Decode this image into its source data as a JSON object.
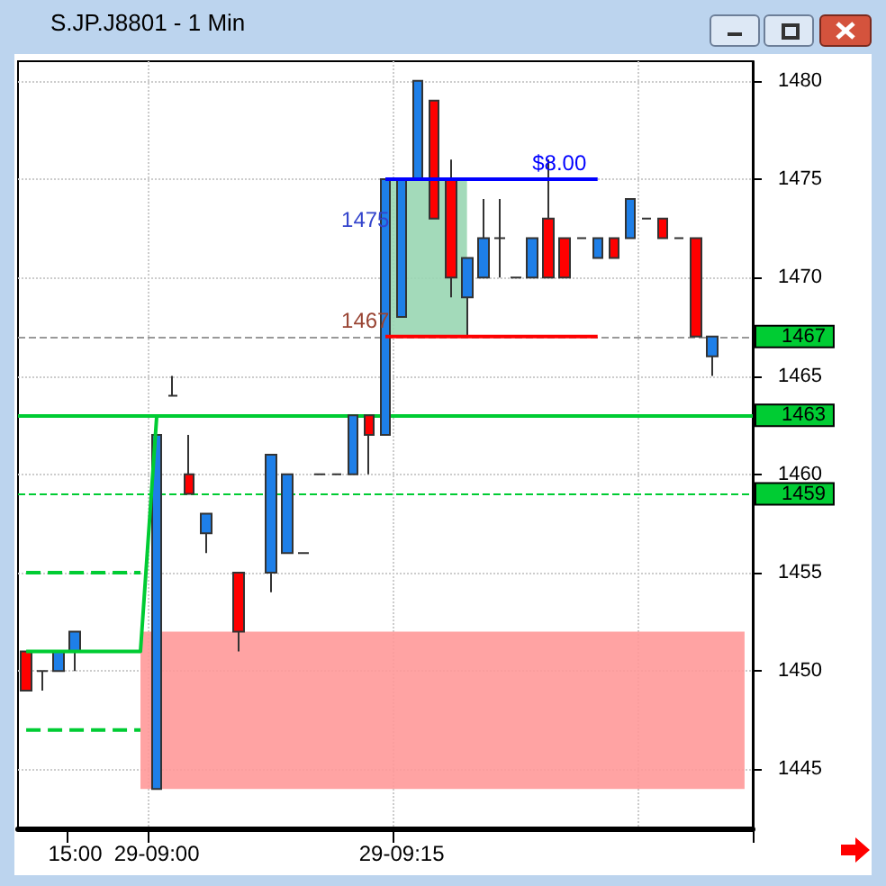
{
  "chart_data": {
    "type": "candlestick",
    "title": "S.JP.J8801 - 1 Min",
    "categories": [
      null,
      null,
      null,
      "15:00",
      null,
      null,
      null,
      null,
      "29-09:00",
      null,
      null,
      null,
      null,
      null,
      null,
      null,
      null,
      null,
      null,
      null,
      null,
      null,
      null,
      "29-09:15",
      null,
      null,
      null,
      null,
      null,
      null,
      null,
      null,
      null,
      null,
      null,
      null,
      null,
      null,
      null,
      null,
      null,
      null,
      null,
      null,
      null
    ],
    "ohlc": [
      [
        1451,
        1451,
        1449,
        1449
      ],
      [
        1450,
        1450,
        1449,
        1450
      ],
      [
        1450,
        1451,
        1450,
        1451
      ],
      [
        1451,
        1452,
        1450,
        1452
      ],
      null,
      null,
      null,
      null,
      [
        1444,
        1462,
        1444,
        1462
      ],
      [
        1464,
        1465,
        1464,
        1464
      ],
      [
        1460,
        1462,
        1459,
        1459
      ],
      [
        1457,
        1458,
        1456,
        1458
      ],
      null,
      [
        1455,
        1455,
        1451,
        1452
      ],
      null,
      [
        1455,
        1461,
        1454,
        1461
      ],
      [
        1456,
        1460,
        1456,
        1460
      ],
      [
        1456,
        1456,
        1456,
        1456
      ],
      [
        1460,
        1460,
        1460,
        1460
      ],
      [
        1460,
        1460,
        1460,
        1460
      ],
      [
        1460,
        1463,
        1460,
        1463
      ],
      [
        1463,
        1463,
        1460,
        1462
      ],
      [
        1462,
        1475,
        1462,
        1475
      ],
      [
        1468,
        1475,
        1468,
        1475
      ],
      [
        1475,
        1480,
        1475,
        1480
      ],
      [
        1479,
        1479,
        1473,
        1473
      ],
      [
        1475,
        1476,
        1469,
        1470
      ],
      [
        1469,
        1471,
        1467,
        1471
      ],
      [
        1470,
        1474,
        1470,
        1472
      ],
      [
        1472,
        1474,
        1470,
        1472
      ],
      [
        1470,
        1470,
        1470,
        1470
      ],
      [
        1470,
        1472,
        1470,
        1472
      ],
      [
        1473,
        1476,
        1470,
        1470
      ],
      [
        1472,
        1472,
        1470,
        1470
      ],
      [
        1472,
        1472,
        1472,
        1472
      ],
      [
        1471,
        1472,
        1471,
        1472
      ],
      [
        1472,
        1472,
        1471,
        1471
      ],
      [
        1472,
        1474,
        1472,
        1474
      ],
      [
        1473,
        1473,
        1473,
        1473
      ],
      [
        1473,
        1473,
        1472,
        1472
      ],
      [
        1472,
        1472,
        1472,
        1472
      ],
      [
        1472,
        1472,
        1467,
        1467
      ],
      [
        1466,
        1467,
        1465,
        1467
      ],
      null,
      null
    ],
    "colors": [
      "#ff0000",
      "#333333",
      "#1e7fe8",
      "#1e7fe8",
      null,
      null,
      null,
      null,
      "#1e7fe8",
      "#333333",
      "#ff0000",
      "#1e7fe8",
      null,
      "#ff0000",
      null,
      "#1e7fe8",
      "#1e7fe8",
      "#333333",
      "#333333",
      "#333333",
      "#1e7fe8",
      "#ff0000",
      "#1e7fe8",
      "#1e7fe8",
      "#1e7fe8",
      "#ff0000",
      "#ff0000",
      "#1e7fe8",
      "#1e7fe8",
      "#333333",
      "#333333",
      "#1e7fe8",
      "#ff0000",
      "#ff0000",
      "#333333",
      "#1e7fe8",
      "#ff0000",
      "#1e7fe8",
      "#333333",
      "#ff0000",
      "#333333",
      "#ff0000",
      "#1e7fe8",
      null,
      null
    ],
    "series": [
      {
        "type": "line",
        "color": "#00cc33",
        "line_style": "solid",
        "values": [
          1451,
          1451,
          1451,
          1451,
          1451,
          1451,
          1451,
          1451,
          1463,
          null,
          null,
          null,
          null,
          null,
          null,
          null,
          null,
          null,
          null,
          null,
          null,
          null,
          null,
          null,
          null,
          null,
          null,
          null,
          null,
          null,
          null,
          null,
          null,
          null,
          null,
          null,
          null,
          null,
          null,
          null,
          null,
          null,
          null,
          null,
          null
        ]
      },
      {
        "type": "line",
        "color": "#00cc33",
        "line_style": "dashed",
        "values": [
          1455,
          1455,
          1455,
          1455,
          1455,
          1455,
          1455,
          1455,
          null,
          null,
          null,
          null,
          null,
          null,
          null,
          null,
          null,
          null,
          null,
          null,
          null,
          null,
          null,
          null,
          null,
          null,
          null,
          null,
          null,
          null,
          null,
          null,
          null,
          null,
          null,
          null,
          null,
          null,
          null,
          null,
          null,
          null,
          null,
          null,
          null
        ]
      },
      {
        "type": "line",
        "color": "#00cc33",
        "line_style": "dashed",
        "values": [
          1447,
          1447,
          1447,
          1447,
          1447,
          1447,
          1447,
          1447,
          null,
          null,
          null,
          null,
          null,
          null,
          null,
          null,
          null,
          null,
          null,
          null,
          null,
          null,
          null,
          null,
          null,
          null,
          null,
          null,
          null,
          null,
          null,
          null,
          null,
          null,
          null,
          null,
          null,
          null,
          null,
          null,
          null,
          null,
          null,
          null,
          null
        ]
      },
      {
        "type": "line",
        "color": "#0000ff",
        "line_style": "solid",
        "values": [
          null,
          null,
          null,
          null,
          null,
          null,
          null,
          null,
          null,
          null,
          null,
          null,
          null,
          null,
          null,
          null,
          null,
          null,
          null,
          null,
          null,
          null,
          1475,
          1475,
          1475,
          1475,
          1475,
          1475,
          1475,
          1475,
          1475,
          1475,
          1475,
          1475,
          1475,
          1475,
          null,
          null,
          null,
          null,
          null,
          null,
          null,
          null,
          null
        ]
      },
      {
        "type": "line",
        "color": "#ff0000",
        "line_style": "solid",
        "values": [
          null,
          null,
          null,
          null,
          null,
          null,
          null,
          null,
          null,
          null,
          null,
          null,
          null,
          null,
          null,
          null,
          null,
          null,
          null,
          null,
          null,
          null,
          1467,
          1467,
          1467,
          1467,
          1467,
          1467,
          1467,
          1467,
          1467,
          1467,
          1467,
          1467,
          1467,
          1467,
          null,
          null,
          null,
          null,
          null,
          null,
          null,
          null,
          null
        ]
      }
    ],
    "ref_lines": [
      {
        "axis": "y",
        "value": 1467,
        "label": "1467",
        "color": "#999999",
        "line_style": "dashed"
      },
      {
        "axis": "y",
        "value": 1463,
        "label": "1463",
        "color": "#00cc33",
        "line_style": "solid"
      },
      {
        "axis": "y",
        "value": 1459,
        "label": "1459",
        "color": "#00cc33",
        "line_style": "dashed"
      }
    ],
    "bands": [
      {
        "axis": "y",
        "from": 1444,
        "to": 1452,
        "color": "#ff9999"
      },
      {
        "axis": "y",
        "from": 1467,
        "to": 1475,
        "color": "#99d6b3"
      }
    ],
    "annotations": [
      {
        "text": "$8.00",
        "y": 1475
      },
      "1475",
      {
        "text": "1467",
        "y": 1467
      }
    ],
    "ylim": [
      1442,
      1481
    ],
    "yticks": [
      1445,
      1450,
      1455,
      1460,
      1465,
      1470,
      1475,
      1480
    ],
    "grid": true,
    "marker": "none"
  }
}
